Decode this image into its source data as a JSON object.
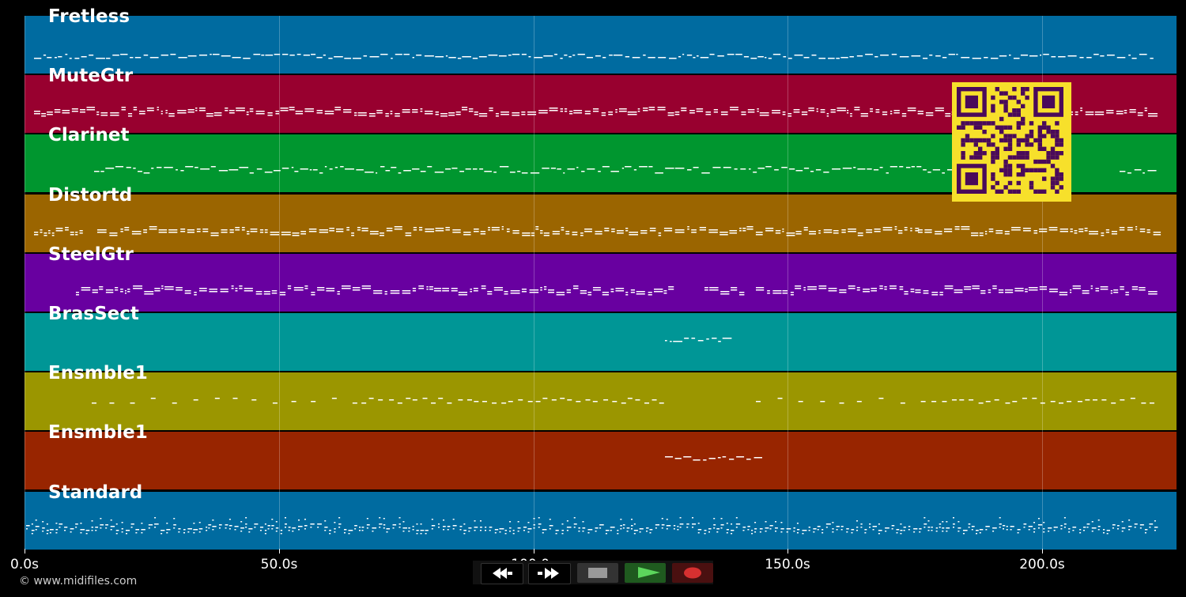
{
  "tracks": [
    {
      "label": "Fretless",
      "color": "#006ba0",
      "density": "dense-melody"
    },
    {
      "label": "MuteGtr",
      "color": "#98002f",
      "density": "dense-double"
    },
    {
      "label": "Clarinet",
      "color": "#00962f",
      "density": "melody-late"
    },
    {
      "label": "Distortd",
      "color": "#9b6500",
      "density": "chords-gaps"
    },
    {
      "label": "SteelGtr",
      "color": "#6800a0",
      "density": "chords"
    },
    {
      "label": "BrasSect",
      "color": "#009696",
      "density": "short"
    },
    {
      "label": "Ensmble1",
      "color": "#9b9600",
      "density": "sparse"
    },
    {
      "label": "Ensmble1",
      "color": "#982500",
      "density": "short2"
    },
    {
      "label": "Standard",
      "color": "#006ba0",
      "density": "drums"
    }
  ],
  "axis": {
    "ticks": [
      "0.0s",
      "50.0s",
      "100.0s",
      "150.0s",
      "200.0s"
    ]
  },
  "footer": {
    "copyright": "© www.midifiles.com"
  },
  "transport": {
    "rewind_icon": "rewind-icon",
    "forward_icon": "fast-forward-icon",
    "stop_icon": "stop-icon",
    "play_icon": "play-icon",
    "record_icon": "record-icon"
  },
  "overlay": {
    "qr_colors": {
      "bg": "#f7e02b",
      "fg": "#4a0a5a"
    }
  }
}
